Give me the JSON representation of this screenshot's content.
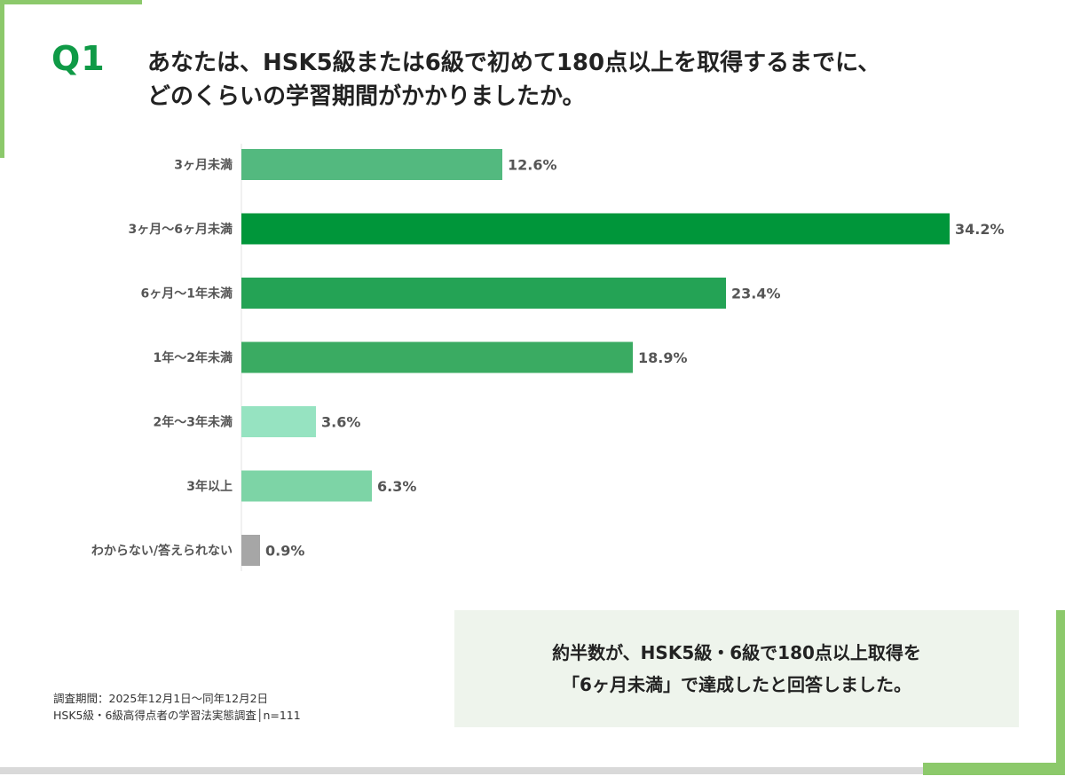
{
  "question": {
    "number": "Q1",
    "line1": "あなたは、HSK5級または6級で初めて180点以上を取得するまでに、",
    "line2": "どのくらいの学習期間がかかりましたか。"
  },
  "chart_data": {
    "type": "bar",
    "orientation": "horizontal",
    "categories": [
      "3ヶ月未満",
      "3ヶ月〜6ヶ月未満",
      "6ヶ月〜1年未満",
      "1年〜2年未満",
      "2年〜3年未満",
      "3年以上",
      "わからない/答えられない"
    ],
    "values": [
      12.6,
      34.2,
      23.4,
      18.9,
      3.6,
      6.3,
      0.9
    ],
    "value_labels": [
      "12.6%",
      "34.2%",
      "23.4%",
      "18.9%",
      "3.6%",
      "6.3%",
      "0.9%"
    ],
    "colors": [
      "#53b97f",
      "#00963a",
      "#24a355",
      "#3aab62",
      "#96e3c1",
      "#7dd4a6",
      "#a6a6a6"
    ],
    "xlim": [
      0,
      34.2
    ],
    "grid": false,
    "legend": "none"
  },
  "note": {
    "period": "調査期間：2025年12月1日〜同年12月2日",
    "survey": "HSK5級・6級高得点者の学習法実態調査│n=111"
  },
  "callout": {
    "line1": "約半数が、HSK5級・6級で180点以上取得を",
    "line2": "「6ヶ月未満」で達成したと回答しました。"
  }
}
